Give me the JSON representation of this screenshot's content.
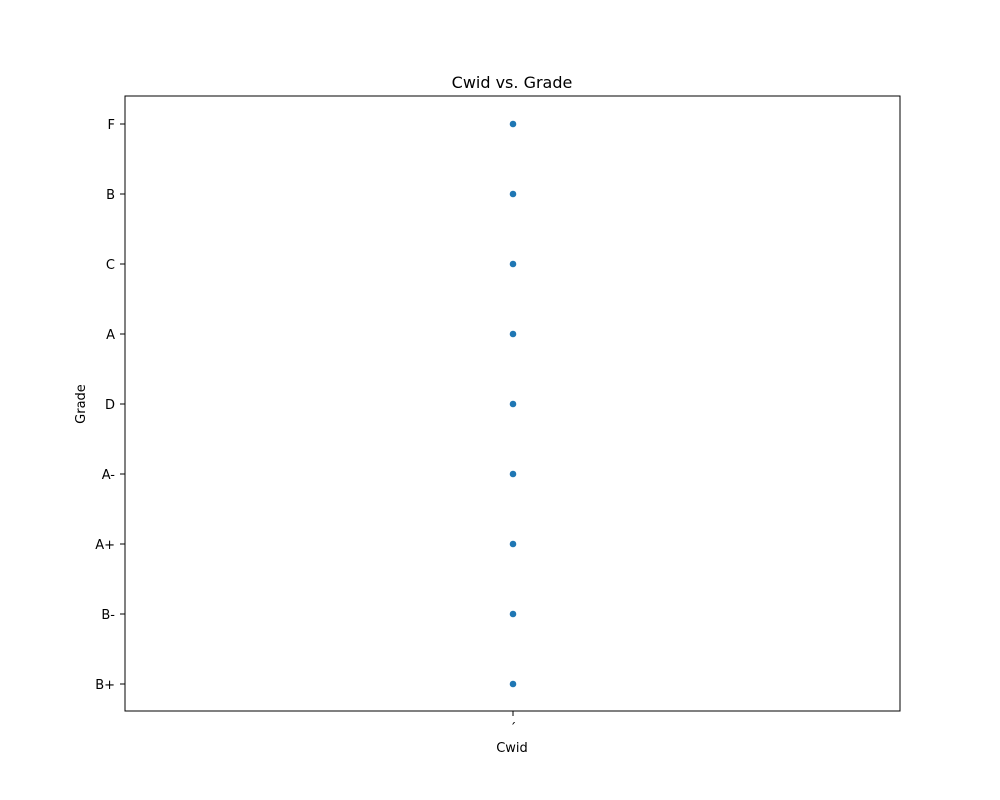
{
  "chart_data": {
    "type": "scatter",
    "title": "Cwid vs. Grade",
    "xlabel": "Cwid",
    "ylabel": "Grade",
    "x_categories": [
      "´"
    ],
    "y_categories": [
      "B+",
      "B-",
      "A+",
      "A-",
      "D",
      "A",
      "C",
      "B",
      "F"
    ],
    "points": [
      {
        "x": "´",
        "y": "F"
      },
      {
        "x": "´",
        "y": "B"
      },
      {
        "x": "´",
        "y": "C"
      },
      {
        "x": "´",
        "y": "A"
      },
      {
        "x": "´",
        "y": "D"
      },
      {
        "x": "´",
        "y": "A-"
      },
      {
        "x": "´",
        "y": "A+"
      },
      {
        "x": "´",
        "y": "B-"
      },
      {
        "x": "´",
        "y": "B+"
      }
    ],
    "marker_color": "#1f77b4",
    "grid": false,
    "legend": "none"
  }
}
